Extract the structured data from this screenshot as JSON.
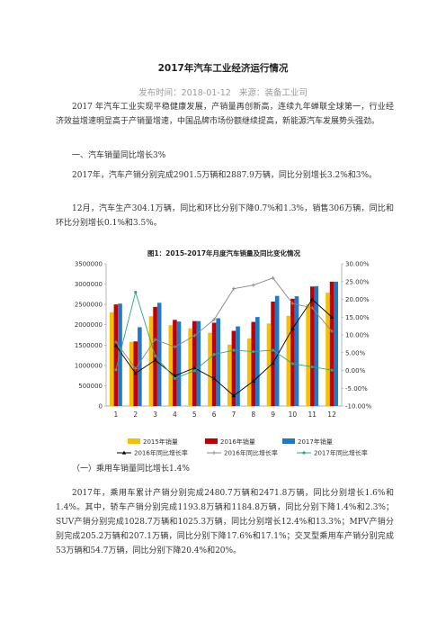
{
  "article": {
    "title": "2017年汽车工业经济运行情况",
    "publish_label": "发布时间：2018-01-12",
    "source_label": "来源：装备工业司",
    "paragraphs": [
      "2017 年汽车工业实现平稳健康发展，产销量再创新高，连续九年蝉联全球第一，行业经济效益增速明显高于产销量增速，中国品牌市场份额继续提高，新能源汽车发展势头强劲。",
      "一、汽车销量同比增长3%",
      "2017年，汽车产销分别完成2901.5万辆和2887.9万辆，同比分别增长3.2%和3%。",
      "12月，汽车生产304.1万辆，同比和环比分别下降0.7%和1.3%，销售306万辆，同比和环比分别增长0.1%和3.5%。",
      "（一）乘用车销量同比增长1.4%",
      "2017年，乘用车累计产销分别完成2480.7万辆和2471.8万辆，同比分别增长1.6%和1.4%。其中，轿车产销分别完成1193.8万辆和1184.8万辆，同比分别下降1.4%和2.3%；SUV产销分别完成1028.7万辆和1025.3万辆，同比分别增长12.4%和13.3%；MPV产销分别完成205.2万辆和207.1万辆，同比分别下降17.6%和17.1%；交叉型乘用车产销分别完成53万辆和54.7万辆，同比分别下降20.4%和20%。"
    ]
  },
  "chart_data": {
    "type": "bar",
    "title": "图1：2015-2017年月度汽车销量及同比变化情况",
    "categories": [
      "1",
      "2",
      "3",
      "4",
      "5",
      "6",
      "7",
      "8",
      "9",
      "10",
      "11",
      "12"
    ],
    "left_axis": {
      "min": 0,
      "max": 3500000,
      "ticks": [
        "0",
        "500000",
        "1000000",
        "1500000",
        "2000000",
        "2500000",
        "3000000",
        "3500000"
      ]
    },
    "right_axis": {
      "min": -10,
      "max": 30,
      "ticks": [
        "-10.00%",
        "-5.00%",
        "0.00%",
        "5.00%",
        "10.00%",
        "15.00%",
        "20.00%",
        "25.00%",
        "30.00%"
      ]
    },
    "bar_series": [
      {
        "name": "2015年销量",
        "color": "#f5c000",
        "values": [
          2310000,
          1580000,
          2210000,
          1990000,
          1910000,
          1800000,
          1510000,
          1660000,
          2030000,
          2220000,
          2500000,
          2790000
        ]
      },
      {
        "name": "2016年销量",
        "color": "#c00000",
        "values": [
          2500000,
          1590000,
          2440000,
          2120000,
          2090000,
          2050000,
          1850000,
          2070000,
          2570000,
          2640000,
          2940000,
          3060000
        ]
      },
      {
        "name": "2017年销量",
        "color": "#1f78c8",
        "values": [
          2520000,
          1940000,
          2540000,
          2080000,
          2090000,
          2160000,
          1960000,
          2190000,
          2710000,
          2700000,
          2950000,
          3060000
        ]
      }
    ],
    "line_series": [
      {
        "name": "2016年同比增长率",
        "color": "#000000",
        "marker": "triangle",
        "values": [
          7.0,
          -0.8,
          2.9,
          -1.5,
          0.7,
          -2.3,
          -7.1,
          -3.0,
          2.1,
          11.8,
          20.0,
          15.0
        ]
      },
      {
        "name": "2016年同比增长率",
        "color": "#888888",
        "marker": "plus",
        "values": [
          8.0,
          0.5,
          8.7,
          6.6,
          9.8,
          14.3,
          23.0,
          24.0,
          26.0,
          18.8,
          17.6,
          11.0
        ]
      },
      {
        "name": "2017年同比增长率",
        "color": "#2aa888",
        "marker": "dot",
        "values": [
          0.2,
          22.0,
          4.1,
          -2.2,
          -0.1,
          4.5,
          5.7,
          5.3,
          5.7,
          1.9,
          1.0,
          0.1
        ]
      }
    ],
    "grid": false,
    "legend_position": "bottom"
  }
}
